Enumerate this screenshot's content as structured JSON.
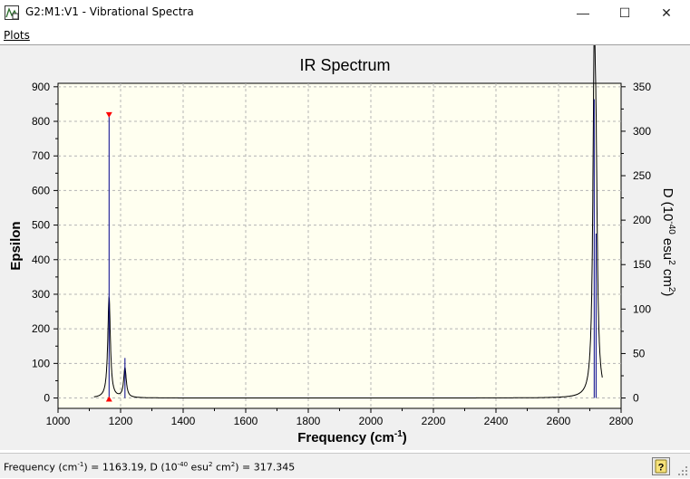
{
  "window": {
    "title": "G2:M1:V1 - Vibrational Spectra",
    "minimize_glyph": "—",
    "maximize_glyph": "☐",
    "close_glyph": "✕"
  },
  "menu": {
    "plots_label": "Plots"
  },
  "status": {
    "prefix": "Frequency (cm",
    "sup1": "-1",
    "mid": ") = 1163.19, D (10",
    "sup2": "-40",
    "mid2": " esu",
    "sup3": "2",
    "mid3": " cm",
    "sup4": "2",
    "suffix": ") = 317.345"
  },
  "icons": {
    "app": "spectrum-app-icon",
    "help": "help-icon"
  },
  "colors": {
    "plot_background": "#fffff0",
    "spectrum_line": "#000000",
    "stick_line": "#00008b",
    "marker": "#ff0000"
  },
  "chart_data": {
    "type": "line",
    "title": "IR Spectrum",
    "xlabel_main": "Frequency (cm",
    "xlabel_sup": "-1",
    "xlabel_end": ")",
    "ylabel": "Epsilon",
    "y2label_parts": [
      "D (10",
      "-40",
      " esu",
      "2",
      " cm",
      "2",
      ")"
    ],
    "xlim": [
      1000,
      2800
    ],
    "ylim": [
      -30,
      910
    ],
    "y2lim": [
      -11.67,
      353.89
    ],
    "x_ticks": [
      1000,
      1200,
      1400,
      1600,
      1800,
      2000,
      2200,
      2400,
      2600,
      2800
    ],
    "y_ticks": [
      0,
      100,
      200,
      300,
      400,
      500,
      600,
      700,
      800,
      900
    ],
    "y2_ticks": [
      0,
      50,
      100,
      150,
      200,
      250,
      300,
      350
    ],
    "grid": true,
    "peaks": [
      {
        "x": 1163.19,
        "epsilon": 290,
        "D": 317.345
      },
      {
        "x": 1214,
        "epsilon": 85,
        "D": 45
      },
      {
        "x": 2714,
        "epsilon": 870,
        "D": 336
      },
      {
        "x": 2720,
        "epsilon": 480,
        "D": 185
      }
    ],
    "selected_peak_x": 1163.19,
    "selected_peak_D": 317.345,
    "spectrum_end_x": 2740
  }
}
